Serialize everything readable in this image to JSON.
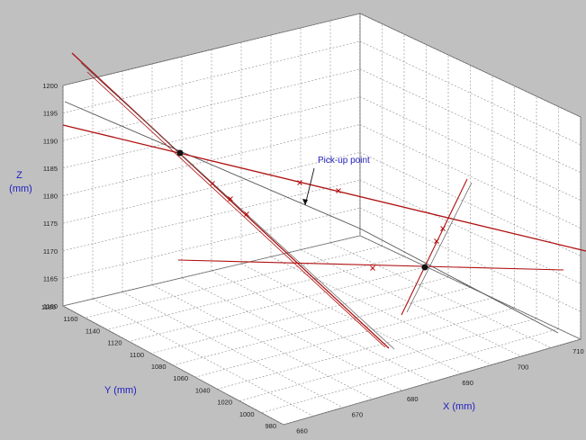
{
  "chart_data": {
    "type": "line3d",
    "title": "",
    "xlabel": "X (mm)",
    "ylabel": "Y (mm)",
    "zlabel": "Z\n(mm)",
    "zlabel_lines": [
      "Z",
      "(mm)"
    ],
    "x_ticks": [
      "660",
      "670",
      "680",
      "690",
      "700",
      "710"
    ],
    "y_ticks": [
      "1180",
      "1160",
      "1140",
      "1120",
      "1100",
      "1080",
      "1060",
      "1040",
      "1020",
      "1000",
      "980"
    ],
    "z_ticks": [
      "1160",
      "1165",
      "1170",
      "1175",
      "1180",
      "1185",
      "1190",
      "1195",
      "1200"
    ],
    "xlim": [
      655,
      715
    ],
    "ylim": [
      970,
      1180
    ],
    "zlim": [
      1160,
      1200
    ],
    "grid": true,
    "annotations": [
      {
        "text": "Pick-up point"
      }
    ],
    "colors": {
      "background": "#c0c0c0",
      "panel": "#ffffff",
      "lines": "#b01010",
      "reference": "#555555",
      "markers": "#111111",
      "labels": "#2020c0"
    }
  }
}
